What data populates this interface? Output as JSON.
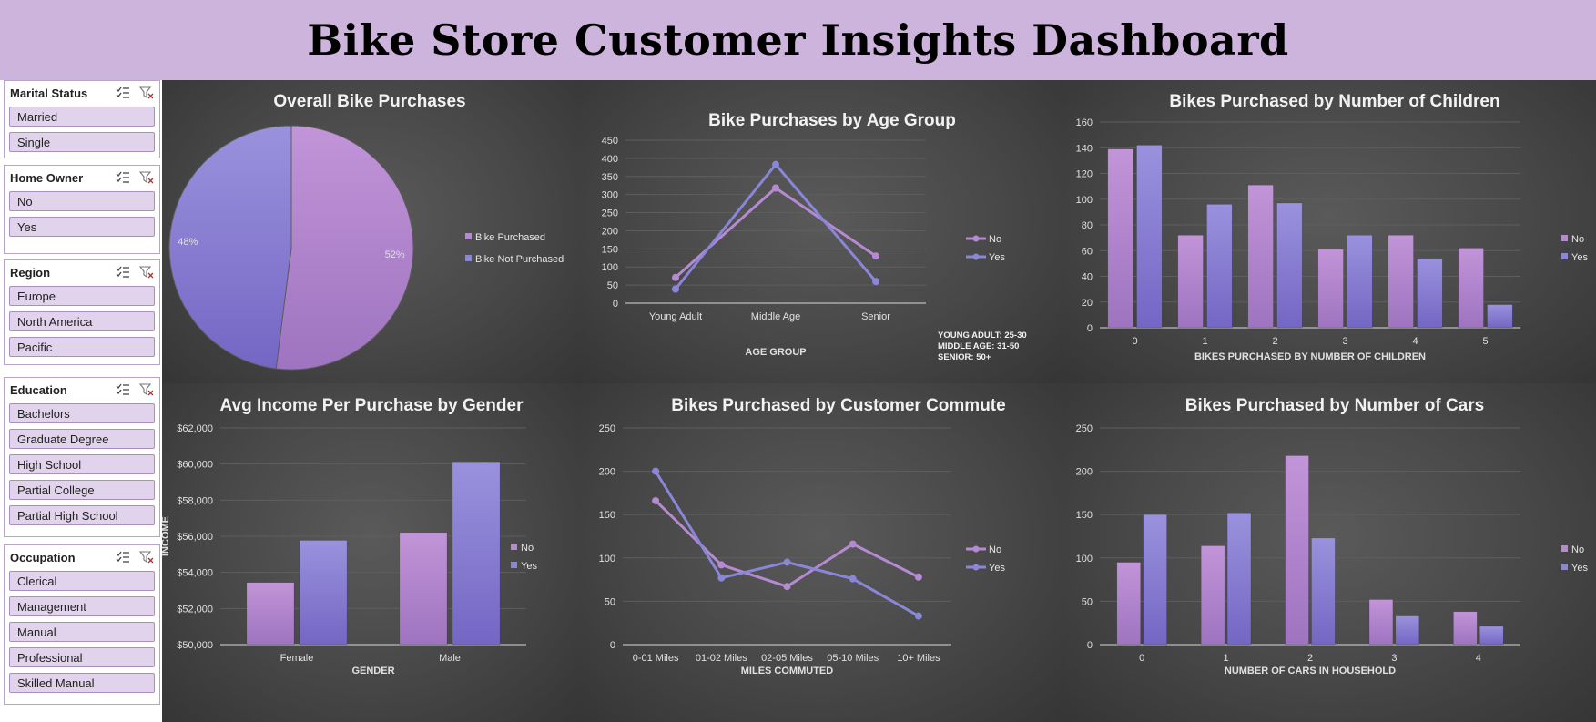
{
  "header": {
    "title": "Bike Store Customer Insights Dashboard"
  },
  "colors": {
    "no": "#b58ad1",
    "yes": "#8a86d8",
    "header_bg": "#cdb4dc",
    "slicer_item": "#e2d3ec"
  },
  "slicers": [
    {
      "title": "Marital Status",
      "items": [
        "Married",
        "Single"
      ]
    },
    {
      "title": "Home Owner",
      "items": [
        "No",
        "Yes"
      ]
    },
    {
      "title": "Region",
      "items": [
        "Europe",
        "North America",
        "Pacific"
      ]
    },
    {
      "title": "Education",
      "items": [
        "Bachelors",
        "Graduate Degree",
        "High School",
        "Partial College",
        "Partial High School"
      ]
    },
    {
      "title": "Occupation",
      "items": [
        "Clerical",
        "Management",
        "Manual",
        "Professional",
        "Skilled Manual"
      ]
    }
  ],
  "chart_data": [
    {
      "id": "overall",
      "type": "pie",
      "title": "Overall Bike Purchases",
      "slices": [
        {
          "label": "Bike Purchased",
          "value": 52,
          "display": "52%"
        },
        {
          "label": "Bike Not Purchased",
          "value": 48,
          "display": "48%"
        }
      ],
      "legend": "right"
    },
    {
      "id": "age",
      "type": "line",
      "title": "Bike Purchases by Age Group",
      "categories": [
        "Young Adult",
        "Middle Age",
        "Senior"
      ],
      "series": [
        {
          "name": "No",
          "values": [
            71,
            318,
            130
          ]
        },
        {
          "name": "Yes",
          "values": [
            39,
            383,
            60
          ]
        }
      ],
      "xlabel": "AGE GROUP",
      "ylabel": "",
      "ylim": [
        0,
        450
      ],
      "yticks": [
        0,
        50,
        100,
        150,
        200,
        250,
        300,
        350,
        400,
        450
      ],
      "notes": [
        "YOUNG ADULT: 25-30",
        "MIDDLE AGE: 31-50",
        "SENIOR: 50+"
      ],
      "legend": "right"
    },
    {
      "id": "children",
      "type": "bar",
      "title": "Bikes Purchased by Number of Children",
      "categories": [
        "0",
        "1",
        "2",
        "3",
        "4",
        "5"
      ],
      "series": [
        {
          "name": "No",
          "values": [
            139,
            72,
            111,
            61,
            72,
            62
          ]
        },
        {
          "name": "Yes",
          "values": [
            142,
            96,
            97,
            72,
            54,
            18
          ]
        }
      ],
      "xlabel": "BIKES PURCHASED BY NUMBER OF CHILDREN",
      "ylabel": "",
      "ylim": [
        0,
        160
      ],
      "yticks": [
        0,
        20,
        40,
        60,
        80,
        100,
        120,
        140,
        160
      ],
      "legend": "right"
    },
    {
      "id": "income",
      "type": "bar",
      "title": "Avg Income Per Purchase by Gender",
      "categories": [
        "Female",
        "Male"
      ],
      "series": [
        {
          "name": "No",
          "values": [
            53440,
            56208
          ]
        },
        {
          "name": "Yes",
          "values": [
            55774,
            60124
          ]
        }
      ],
      "xlabel": "GENDER",
      "ylabel": "INCOME",
      "ylim": [
        50000,
        62000
      ],
      "yticks": [
        50000,
        52000,
        54000,
        56000,
        58000,
        60000,
        62000
      ],
      "ytick_labels": [
        "$50,000",
        "$52,000",
        "$54,000",
        "$56,000",
        "$58,000",
        "$60,000",
        "$62,000"
      ],
      "legend": "right"
    },
    {
      "id": "commute",
      "type": "line",
      "title": "Bikes Purchased by Customer Commute",
      "categories": [
        "0-01 Miles",
        "01-02 Miles",
        "02-05 Miles",
        "05-10 Miles",
        "10+ Miles"
      ],
      "series": [
        {
          "name": "No",
          "values": [
            166,
            92,
            67,
            116,
            78
          ]
        },
        {
          "name": "Yes",
          "values": [
            200,
            77,
            95,
            76,
            33
          ]
        }
      ],
      "xlabel": "MILES COMMUTED",
      "ylabel": "",
      "ylim": [
        0,
        250
      ],
      "yticks": [
        0,
        50,
        100,
        150,
        200,
        250
      ],
      "legend": "right"
    },
    {
      "id": "cars",
      "type": "bar",
      "title": "Bikes Purchased by Number of Cars",
      "categories": [
        "0",
        "1",
        "2",
        "3",
        "4"
      ],
      "series": [
        {
          "name": "No",
          "values": [
            95,
            114,
            218,
            52,
            38
          ]
        },
        {
          "name": "Yes",
          "values": [
            150,
            152,
            123,
            33,
            21
          ]
        }
      ],
      "xlabel": "NUMBER OF CARS IN HOUSEHOLD",
      "ylabel": "",
      "ylim": [
        0,
        250
      ],
      "yticks": [
        0,
        50,
        100,
        150,
        200,
        250
      ],
      "legend": "right"
    }
  ]
}
